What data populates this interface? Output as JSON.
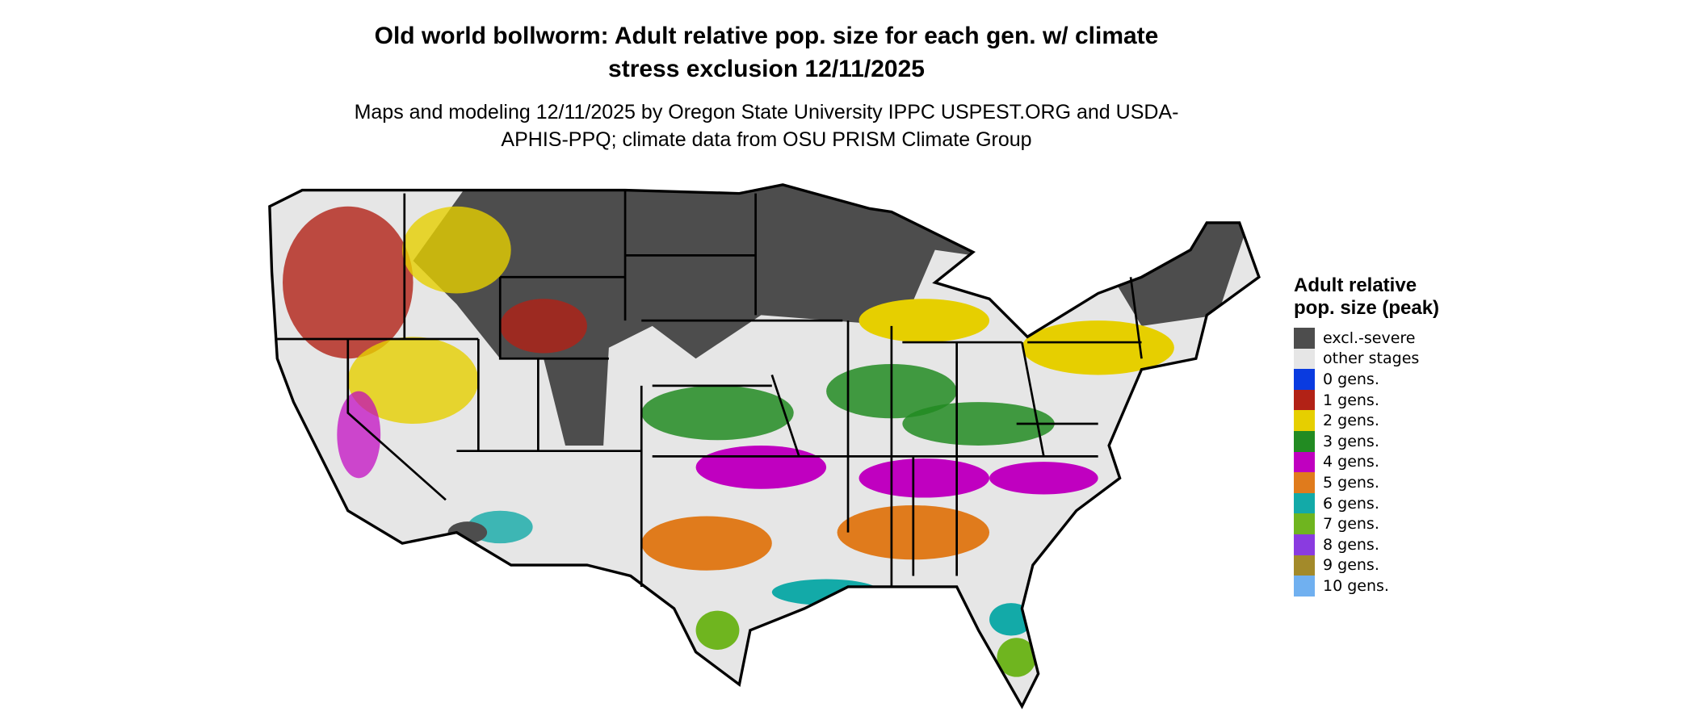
{
  "title": "Old world bollworm: Adult relative pop. size for each gen. w/ climate stress exclusion 12/11/2025",
  "subtitle": "Maps and modeling 12/11/2025 by Oregon State University IPPC USPEST.ORG and USDA-APHIS-PPQ; climate data from OSU PRISM Climate Group",
  "legend": {
    "title": "Adult relative pop. size (peak)",
    "items": [
      {
        "label": "excl.-severe",
        "color": "#4d4d4d"
      },
      {
        "label": "other stages",
        "color": "#e6e6e6"
      },
      {
        "label": "0 gens.",
        "color": "#0a3be0"
      },
      {
        "label": "1 gens.",
        "color": "#b22216"
      },
      {
        "label": "2 gens.",
        "color": "#e6cf00"
      },
      {
        "label": "3 gens.",
        "color": "#228b22"
      },
      {
        "label": "4 gens.",
        "color": "#c000c0"
      },
      {
        "label": "5 gens.",
        "color": "#e07b1c"
      },
      {
        "label": "6 gens.",
        "color": "#13aaa8"
      },
      {
        "label": "7 gens.",
        "color": "#6fb51f"
      },
      {
        "label": "8 gens.",
        "color": "#8a3be0"
      },
      {
        "label": "9 gens.",
        "color": "#a38a2a"
      },
      {
        "label": "10 gens.",
        "color": "#70b0f0"
      }
    ]
  }
}
